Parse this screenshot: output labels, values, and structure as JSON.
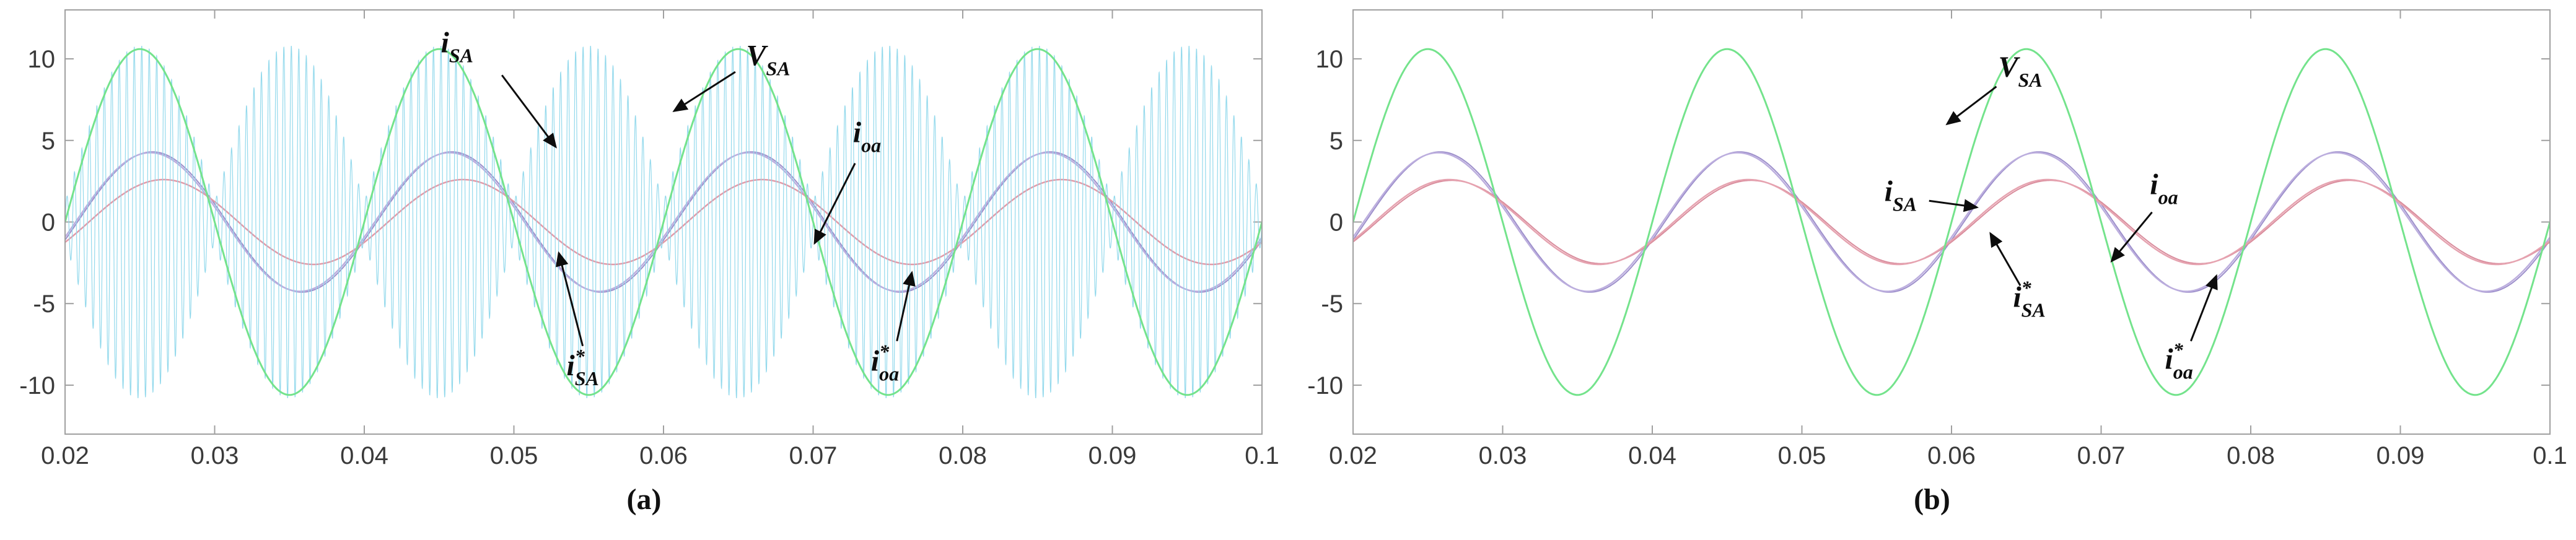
{
  "figure": {
    "description_visible_text_only": "Two waveform plots with captions (a) and (b)"
  },
  "chart_data": [
    {
      "id": "a",
      "type": "line",
      "caption": "(a)",
      "xlim": [
        0.02,
        0.1
      ],
      "ylim": [
        -13,
        13
      ],
      "xticks": [
        0.02,
        0.03,
        0.04,
        0.05,
        0.06,
        0.07,
        0.08,
        0.09,
        0.1
      ],
      "xtick_labels": [
        "0.02",
        "0.03",
        "0.04",
        "0.05",
        "0.06",
        "0.07",
        "0.08",
        "0.09",
        "0.1"
      ],
      "yticks": [
        -10,
        -5,
        0,
        5,
        10
      ],
      "ytick_labels": [
        "-10",
        "-5",
        "0",
        "5",
        "10"
      ],
      "grid": false,
      "legend": "none (arrow annotations instead)",
      "series": [
        {
          "name": "i_oa_ref",
          "kind": "sine",
          "amp": 4.3,
          "freq_hz": 50,
          "phase_rad": -0.26,
          "color": "#9d8fcb",
          "width": 2,
          "samples": 900
        },
        {
          "name": "i_oa",
          "kind": "sine",
          "amp": 4.25,
          "freq_hz": 50,
          "phase_rad": -0.22,
          "color": "#bcaede",
          "width": 2.5,
          "samples": 900
        },
        {
          "name": "i_SA_ref",
          "kind": "sine",
          "amp": 2.6,
          "freq_hz": 50,
          "phase_rad": -0.5,
          "color": "#e39aa8",
          "width": 2.5,
          "samples": 900
        },
        {
          "name": "i_SA",
          "kind": "am_sine",
          "base_amp": 1.2,
          "env_amp": 9.6,
          "env_hz": 50,
          "carrier_hz": 2000,
          "color": "#93d9ec",
          "width": 1.2,
          "samples": 8000
        },
        {
          "name": "V_SA",
          "kind": "sine",
          "amp": 10.6,
          "freq_hz": 50,
          "phase_rad": 0,
          "color": "#74e38c",
          "width": 3,
          "samples": 900
        }
      ],
      "annotations": [
        {
          "base": "i",
          "sup": "",
          "sub": "SA",
          "lx": 0.0462,
          "ly": 10.4,
          "ax": 0.0492,
          "ay": 9.0,
          "tx": 0.0528,
          "ty": 4.6
        },
        {
          "base": "V",
          "sup": "",
          "sub": "SA",
          "lx": 0.067,
          "ly": 9.6,
          "ax": 0.0648,
          "ay": 9.2,
          "tx": 0.0607,
          "ty": 6.8
        },
        {
          "base": "i",
          "sup": "",
          "sub": "oa",
          "lx": 0.0736,
          "ly": 4.9,
          "ax": 0.0728,
          "ay": 3.6,
          "tx": 0.0701,
          "ty": -1.3
        },
        {
          "base": "i",
          "sup": "*",
          "sub": "SA",
          "lx": 0.0546,
          "ly": -9.4,
          "ax": 0.0546,
          "ay": -7.6,
          "tx": 0.053,
          "ty": -1.9
        },
        {
          "base": "i",
          "sup": "*",
          "sub": "oa",
          "lx": 0.0748,
          "ly": -9.1,
          "ax": 0.0756,
          "ay": -7.3,
          "tx": 0.0766,
          "ty": -3.1
        }
      ]
    },
    {
      "id": "b",
      "type": "line",
      "caption": "(b)",
      "xlim": [
        0.02,
        0.1
      ],
      "ylim": [
        -13,
        13
      ],
      "xticks": [
        0.02,
        0.03,
        0.04,
        0.05,
        0.06,
        0.07,
        0.08,
        0.09,
        0.1
      ],
      "xtick_labels": [
        "0.02",
        "0.03",
        "0.04",
        "0.05",
        "0.06",
        "0.07",
        "0.08",
        "0.09",
        "0.1"
      ],
      "yticks": [
        -10,
        -5,
        0,
        5,
        10
      ],
      "ytick_labels": [
        "-10",
        "-5",
        "0",
        "5",
        "10"
      ],
      "grid": false,
      "legend": "none (arrow annotations instead)",
      "series": [
        {
          "name": "i_oa_ref",
          "kind": "sine",
          "amp": 4.3,
          "freq_hz": 50,
          "phase_rad": -0.26,
          "color": "#9d8fcb",
          "width": 2,
          "samples": 900
        },
        {
          "name": "i_oa",
          "kind": "sine",
          "amp": 4.25,
          "freq_hz": 50,
          "phase_rad": -0.22,
          "color": "#bcaede",
          "width": 2.5,
          "samples": 900
        },
        {
          "name": "i_SA_ref",
          "kind": "sine",
          "amp": 2.55,
          "freq_hz": 50,
          "phase_rad": -0.5,
          "color": "#d98c9c",
          "width": 2,
          "samples": 900
        },
        {
          "name": "i_SA",
          "kind": "sine",
          "amp": 2.6,
          "freq_hz": 50,
          "phase_rad": -0.45,
          "color": "#e6a3b0",
          "width": 2.5,
          "samples": 900
        },
        {
          "name": "V_SA",
          "kind": "sine",
          "amp": 10.6,
          "freq_hz": 50,
          "phase_rad": 0,
          "color": "#74e38c",
          "width": 3,
          "samples": 900
        }
      ],
      "annotations": [
        {
          "base": "V",
          "sup": "",
          "sub": "SA",
          "lx": 0.0646,
          "ly": 8.9,
          "ax": 0.063,
          "ay": 8.3,
          "tx": 0.0597,
          "ty": 6.0
        },
        {
          "base": "i",
          "sup": "",
          "sub": "SA",
          "lx": 0.0566,
          "ly": 1.3,
          "ax": 0.0585,
          "ay": 1.3,
          "tx": 0.0617,
          "ty": 0.9
        },
        {
          "base": "i",
          "sup": "*",
          "sub": "SA",
          "lx": 0.0652,
          "ly": -5.2,
          "ax": 0.0646,
          "ay": -3.9,
          "tx": 0.0626,
          "ty": -0.7
        },
        {
          "base": "i",
          "sup": "",
          "sub": "oa",
          "lx": 0.0742,
          "ly": 1.7,
          "ax": 0.0734,
          "ay": 0.6,
          "tx": 0.0707,
          "ty": -2.4
        },
        {
          "base": "i",
          "sup": "*",
          "sub": "oa",
          "lx": 0.0752,
          "ly": -9.0,
          "ax": 0.076,
          "ay": -7.3,
          "tx": 0.0777,
          "ty": -3.3
        }
      ]
    }
  ],
  "style": {
    "axis_box_color": "#a0a0a0",
    "tick_label_color": "#3a3a3a",
    "annotation_color": "#0d0d0d",
    "background": "#ffffff"
  }
}
